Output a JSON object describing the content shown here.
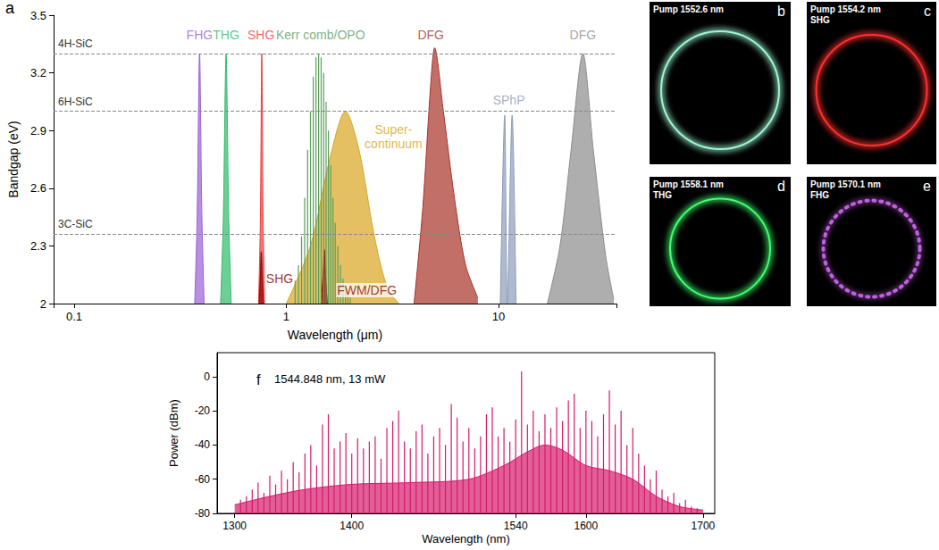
{
  "chart_data": [
    {
      "panel": "a",
      "type": "area",
      "x_label": "Wavelength (μm)",
      "y_label": "Bandgap (eV)",
      "log": "x",
      "grid": false,
      "xlim": [
        0.08,
        36
      ],
      "xticks": [
        0.1,
        1,
        10
      ],
      "ylim": [
        2,
        3.5
      ],
      "yticks": [
        2,
        2.3,
        2.6,
        2.9,
        3.2,
        3.5
      ],
      "hlines": [
        {
          "value": 3.3,
          "label": "4H-SiC"
        },
        {
          "value": 3.0,
          "label": "6H-SiC"
        },
        {
          "value": 2.36,
          "label": "3C-SiC"
        }
      ],
      "series": [
        {
          "name": "Super-\ncontinuum",
          "type": "area",
          "color": "#d9a521",
          "label_at": [
            3.2,
            2.87
          ],
          "x": [
            1.0,
            1.3,
            1.6,
            1.9,
            2.2,
            2.6,
            3.0,
            3.4
          ],
          "values": [
            2,
            2.3,
            2.75,
            3.0,
            2.8,
            2.35,
            2.08,
            2
          ]
        },
        {
          "name": "Kerr comb/OPO",
          "type": "comb",
          "color": "#5a9e5a",
          "label_at": [
            1.45,
            3.4
          ],
          "x": [
            1.1,
            1.14,
            1.18,
            1.22,
            1.26,
            1.3,
            1.34,
            1.38,
            1.42,
            1.46,
            1.5,
            1.54,
            1.58,
            1.62,
            1.66,
            1.7,
            1.75,
            1.8,
            1.85,
            1.9,
            1.95,
            2.0
          ],
          "values": [
            2.12,
            2.2,
            2.35,
            2.55,
            2.8,
            3.0,
            3.18,
            3.28,
            3.3,
            3.28,
            3.2,
            3.05,
            2.9,
            2.72,
            2.55,
            2.42,
            2.3,
            2.2,
            2.13,
            2.08,
            2.05,
            2.03
          ]
        },
        {
          "name": "FHG",
          "type": "area",
          "color": "#9a5fd6",
          "label_at": [
            0.39,
            3.4
          ],
          "x": [
            0.37,
            0.38,
            0.39,
            0.4,
            0.41
          ],
          "values": [
            2,
            2.45,
            3.3,
            2.45,
            2
          ]
        },
        {
          "name": "THG",
          "type": "area",
          "color": "#2dbb6a",
          "label_at": [
            0.52,
            3.4
          ],
          "x": [
            0.49,
            0.505,
            0.52,
            0.535,
            0.55
          ],
          "values": [
            2,
            2.45,
            3.3,
            2.45,
            2
          ]
        },
        {
          "name": "SHG",
          "type": "area",
          "color": "#f03c3c",
          "label_at": [
            0.76,
            3.4
          ],
          "x": [
            0.74,
            0.755,
            0.766,
            0.777,
            0.79
          ],
          "values": [
            2,
            2.45,
            3.3,
            2.45,
            2
          ]
        },
        {
          "name": "SHG",
          "type": "area",
          "color": "#8b0000",
          "label_at": [
            0.93,
            2.13
          ],
          "x": [
            0.745,
            0.755,
            0.762,
            0.77,
            0.78
          ],
          "values": [
            2,
            2.15,
            2.27,
            2.15,
            2
          ]
        },
        {
          "name": "FWM/DFG",
          "type": "area",
          "color": "#8b0000",
          "label_at": [
            2.4,
            2.07
          ],
          "x": [
            1.46,
            1.49,
            1.51,
            1.53,
            1.56
          ],
          "values": [
            2,
            2.15,
            2.28,
            2.15,
            2
          ]
        },
        {
          "name": "DFG",
          "type": "area",
          "color": "#a83228",
          "label_at": [
            4.8,
            3.4
          ],
          "x": [
            4.0,
            4.4,
            4.8,
            5.0,
            5.5,
            6.2,
            7.0,
            8.0
          ],
          "values": [
            2,
            2.5,
            3.15,
            3.33,
            3.0,
            2.55,
            2.2,
            2.03
          ]
        },
        {
          "name": "SPhP",
          "type": "area",
          "color": "#8c9cb8",
          "label_at": [
            11.2,
            3.06
          ],
          "x": [
            10.2,
            10.7,
            11.0,
            11.6,
            12.1
          ],
          "values": [
            2,
            2.98,
            2.0,
            2.98,
            2
          ]
        },
        {
          "name": "DFG",
          "type": "area",
          "color": "#8c8c8c",
          "label_at": [
            25,
            3.4
          ],
          "x": [
            17,
            19.5,
            22,
            25,
            28,
            32,
            35
          ],
          "values": [
            2,
            2.3,
            2.8,
            3.3,
            2.8,
            2.25,
            2.02
          ]
        }
      ]
    },
    {
      "panel": "f",
      "type": "line",
      "x_label": "Wavelength (nm)",
      "y_label": "Power (dBm)",
      "annotation": "1544.848 nm, 13 mW",
      "grid": false,
      "xlim": [
        1285,
        1710
      ],
      "xticks": [
        1300,
        1400,
        1540,
        1600,
        1700
      ],
      "ylim": [
        -80,
        14
      ],
      "yticks": [
        -80,
        -60,
        -40,
        -20,
        0
      ],
      "series": [
        {
          "type": "area",
          "color": "#d6196b",
          "x": [
            1300,
            1330,
            1360,
            1400,
            1450,
            1500,
            1530,
            1550,
            1565,
            1580,
            1600,
            1620,
            1640,
            1660,
            1680,
            1700
          ],
          "values": [
            -75,
            -70,
            -66,
            -63,
            -62,
            -60,
            -52,
            -44,
            -40,
            -43,
            -52,
            -55,
            -60,
            -70,
            -76,
            -78
          ]
        },
        {
          "type": "comb",
          "color": "#d6196b",
          "x": [
            1305,
            1310,
            1315,
            1320,
            1325,
            1330,
            1335,
            1340,
            1345,
            1350,
            1355,
            1360,
            1365,
            1370,
            1375,
            1380,
            1385,
            1390,
            1395,
            1400,
            1405,
            1410,
            1415,
            1420,
            1425,
            1430,
            1435,
            1440,
            1445,
            1450,
            1455,
            1460,
            1465,
            1470,
            1475,
            1480,
            1485,
            1490,
            1495,
            1500,
            1505,
            1510,
            1515,
            1520,
            1525,
            1530,
            1535,
            1540,
            1545,
            1550,
            1555,
            1560,
            1565,
            1570,
            1575,
            1580,
            1585,
            1590,
            1595,
            1600,
            1605,
            1610,
            1615,
            1620,
            1625,
            1630,
            1635,
            1640,
            1645,
            1650,
            1655,
            1660,
            1665,
            1670,
            1675,
            1680,
            1685,
            1690,
            1695
          ],
          "values": [
            -72,
            -70,
            -66,
            -62,
            -68,
            -58,
            -63,
            -55,
            -60,
            -50,
            -56,
            -45,
            -40,
            -52,
            -28,
            -22,
            -42,
            -38,
            -33,
            -45,
            -36,
            -42,
            -38,
            -35,
            -48,
            -30,
            -26,
            -20,
            -38,
            -42,
            -32,
            -28,
            -45,
            -35,
            -30,
            -40,
            -16,
            -24,
            -38,
            -30,
            -42,
            -35,
            -22,
            -18,
            -35,
            -30,
            -38,
            -25,
            3,
            -28,
            -20,
            -32,
            -22,
            -30,
            -18,
            -26,
            -14,
            -10,
            -30,
            -20,
            -26,
            -35,
            -22,
            -8,
            -28,
            -20,
            -40,
            -30,
            -45,
            -52,
            -60,
            -55,
            -66,
            -70,
            -68,
            -74,
            -72,
            -76,
            -77
          ]
        }
      ]
    }
  ],
  "images": [
    {
      "panel": "b",
      "texts": [
        "Pump 1552.6 nm"
      ],
      "color": "#9df5d0"
    },
    {
      "panel": "c",
      "texts": [
        "Pump 1554.2 nm",
        "SHG"
      ],
      "color": "#ff3030"
    },
    {
      "panel": "d",
      "texts": [
        "Pump 1558.1 nm",
        "THG"
      ],
      "color": "#40ff70"
    },
    {
      "panel": "e",
      "texts": [
        "Pump 1570.1 nm",
        "FHG"
      ],
      "color": "#c060e0",
      "line_style": "dotted"
    }
  ]
}
